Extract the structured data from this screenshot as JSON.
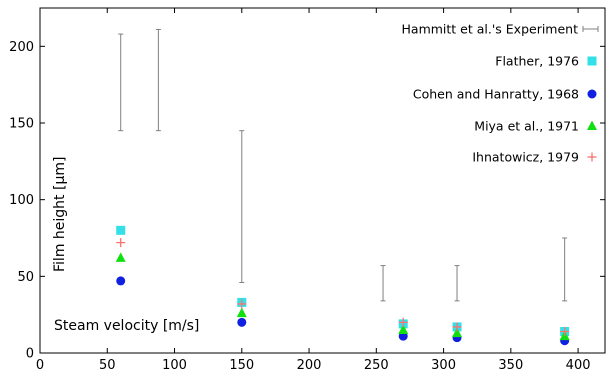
{
  "chart_data": {
    "type": "scatter",
    "xlabel": "Steam velocity [m/s]",
    "ylabel": "Film height [µm]",
    "xlim": [
      0,
      420
    ],
    "ylim": [
      0,
      225
    ],
    "x_ticks": [
      0,
      50,
      100,
      150,
      200,
      250,
      300,
      350,
      400
    ],
    "y_ticks": [
      0,
      50,
      100,
      150,
      200
    ],
    "legend_position": "top-right",
    "grid": false,
    "series": [
      {
        "name": "Hammitt et al.'s Experiment",
        "kind": "errorbar",
        "color": "#808080",
        "ranges": [
          {
            "x": 60,
            "low": 145,
            "high": 208
          },
          {
            "x": 88,
            "low": 145,
            "high": 211
          },
          {
            "x": 150,
            "low": 46,
            "high": 145
          },
          {
            "x": 255,
            "low": 34,
            "high": 57
          },
          {
            "x": 310,
            "low": 34,
            "high": 57
          },
          {
            "x": 390,
            "low": 34,
            "high": 75
          }
        ]
      },
      {
        "name": "Flather, 1976",
        "marker": "square",
        "color": "#33e0e8",
        "points": [
          [
            60,
            80
          ],
          [
            150,
            33
          ],
          [
            270,
            19
          ],
          [
            310,
            17
          ],
          [
            390,
            14
          ]
        ]
      },
      {
        "name": "Cohen and Hanratty, 1968",
        "marker": "circle",
        "color": "#1020e0",
        "points": [
          [
            60,
            47
          ],
          [
            150,
            20
          ],
          [
            270,
            11
          ],
          [
            310,
            10
          ],
          [
            390,
            8
          ]
        ]
      },
      {
        "name": "Miya et al., 1971",
        "marker": "triangle",
        "color": "#10e010",
        "points": [
          [
            60,
            62
          ],
          [
            150,
            26
          ],
          [
            270,
            15
          ],
          [
            310,
            13
          ],
          [
            390,
            11
          ]
        ]
      },
      {
        "name": "Ihnatowicz, 1979",
        "marker": "plus",
        "color": "#ff7070",
        "points": [
          [
            60,
            72
          ],
          [
            150,
            32
          ],
          [
            270,
            20
          ],
          [
            310,
            17
          ],
          [
            390,
            14
          ]
        ]
      }
    ]
  }
}
